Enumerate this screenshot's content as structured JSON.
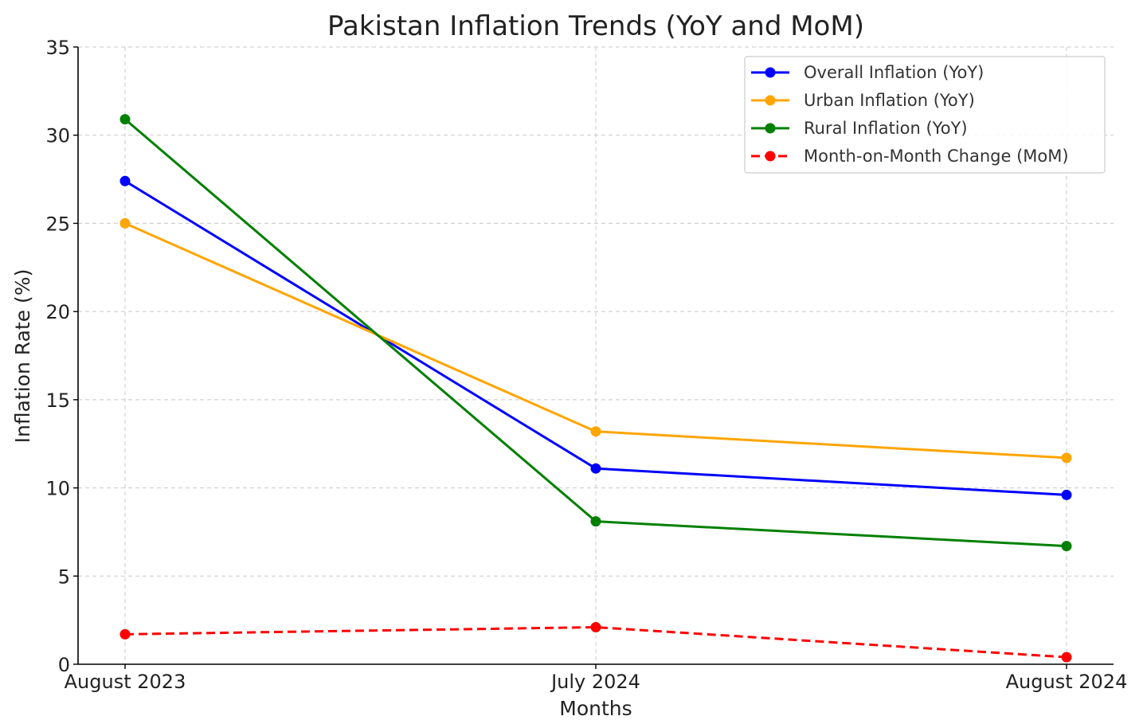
{
  "chart_data": {
    "type": "line",
    "title": "Pakistan Inflation Trends (YoY and MoM)",
    "xlabel": "Months",
    "ylabel": "Inflation Rate (%)",
    "categories": [
      "August 2023",
      "July 2024",
      "August 2024"
    ],
    "ylim": [
      0,
      35
    ],
    "yticks": [
      0,
      5,
      10,
      15,
      20,
      25,
      30,
      35
    ],
    "grid": true,
    "legend_position": "top-right",
    "series": [
      {
        "name": "Overall Inflation (YoY)",
        "values": [
          27.4,
          11.1,
          9.6
        ],
        "color": "#0000ff",
        "dashed": false
      },
      {
        "name": "Urban Inflation (YoY)",
        "values": [
          25.0,
          13.2,
          11.7
        ],
        "color": "#ffa500",
        "dashed": false
      },
      {
        "name": "Rural Inflation (YoY)",
        "values": [
          30.9,
          8.1,
          6.7
        ],
        "color": "#008000",
        "dashed": false
      },
      {
        "name": "Month-on-Month Change (MoM)",
        "values": [
          1.7,
          2.1,
          0.4
        ],
        "color": "#ff0000",
        "dashed": true
      }
    ]
  }
}
